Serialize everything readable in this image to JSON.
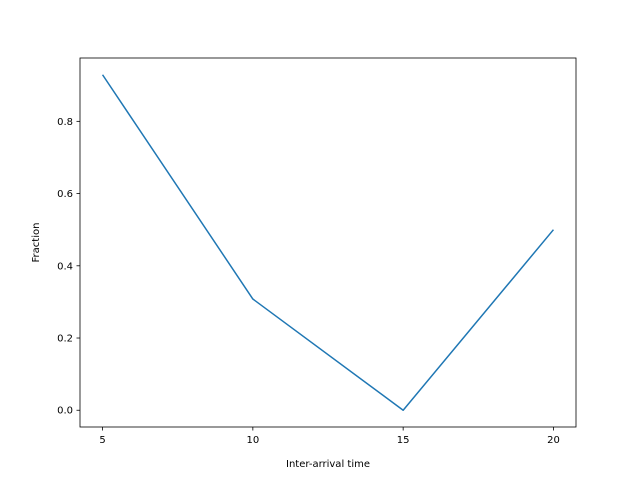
{
  "chart_data": {
    "type": "line",
    "title": "",
    "xlabel": "Inter-arrival time",
    "ylabel": "Fraction",
    "x": [
      5,
      10,
      15,
      20
    ],
    "series": [
      {
        "values": [
          0.929,
          0.308,
          0.0,
          0.5
        ],
        "color": "#1f77b4"
      }
    ],
    "xlim": [
      4.25,
      20.75
    ],
    "ylim": [
      -0.0464,
      0.9754
    ],
    "xticks": [
      5,
      10,
      15,
      20
    ],
    "xtick_labels": [
      "5",
      "10",
      "15",
      "20"
    ],
    "yticks": [
      0.0,
      0.2,
      0.4,
      0.6,
      0.8
    ],
    "ytick_labels": [
      "0.0",
      "0.2",
      "0.4",
      "0.6",
      "0.8"
    ],
    "grid": false,
    "legend": false
  }
}
